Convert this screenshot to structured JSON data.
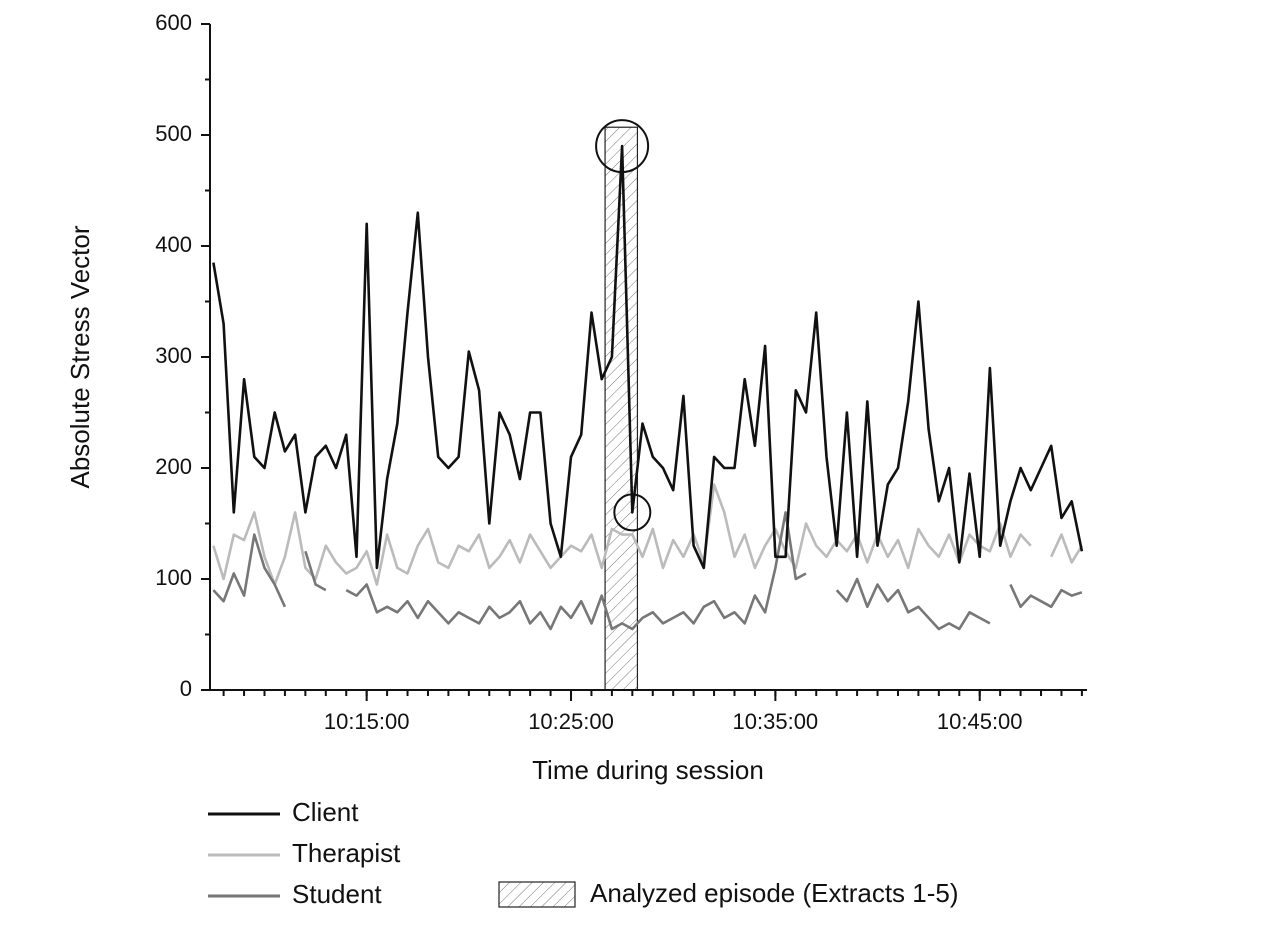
{
  "chart_data": {
    "type": "line",
    "x_label": "Time during session",
    "y_label": "Absolute Stress Vector",
    "xlim": [
      "10:07:20",
      "10:50:15"
    ],
    "xticks": [
      "10:15:00",
      "10:25:00",
      "10:35:00",
      "10:45:00"
    ],
    "ylim": [
      0,
      600
    ],
    "yticks": [
      0,
      100,
      200,
      300,
      400,
      500,
      600
    ],
    "x": [
      "10:07:30",
      "10:08:00",
      "10:08:30",
      "10:09:00",
      "10:09:30",
      "10:10:00",
      "10:10:30",
      "10:11:00",
      "10:11:30",
      "10:12:00",
      "10:12:30",
      "10:13:00",
      "10:13:30",
      "10:14:00",
      "10:14:30",
      "10:15:00",
      "10:15:30",
      "10:16:00",
      "10:16:30",
      "10:17:00",
      "10:17:30",
      "10:18:00",
      "10:18:30",
      "10:19:00",
      "10:19:30",
      "10:20:00",
      "10:20:30",
      "10:21:00",
      "10:21:30",
      "10:22:00",
      "10:22:30",
      "10:23:00",
      "10:23:30",
      "10:24:00",
      "10:24:30",
      "10:25:00",
      "10:25:30",
      "10:26:00",
      "10:26:30",
      "10:27:00",
      "10:27:30",
      "10:28:00",
      "10:28:30",
      "10:29:00",
      "10:29:30",
      "10:30:00",
      "10:30:30",
      "10:31:00",
      "10:31:30",
      "10:32:00",
      "10:32:30",
      "10:33:00",
      "10:33:30",
      "10:34:00",
      "10:34:30",
      "10:35:00",
      "10:35:30",
      "10:36:00",
      "10:36:30",
      "10:37:00",
      "10:37:30",
      "10:38:00",
      "10:38:30",
      "10:39:00",
      "10:39:30",
      "10:40:00",
      "10:40:30",
      "10:41:00",
      "10:41:30",
      "10:42:00",
      "10:42:30",
      "10:43:00",
      "10:43:30",
      "10:44:00",
      "10:44:30",
      "10:45:00",
      "10:45:30",
      "10:46:00",
      "10:46:30",
      "10:47:00",
      "10:47:30",
      "10:48:00",
      "10:48:30",
      "10:49:00",
      "10:49:30",
      "10:50:00"
    ],
    "series": [
      {
        "name": "Client",
        "color": "#111111",
        "values": [
          385,
          330,
          160,
          280,
          210,
          200,
          250,
          215,
          230,
          160,
          210,
          220,
          200,
          230,
          120,
          420,
          110,
          190,
          240,
          340,
          430,
          300,
          210,
          200,
          210,
          305,
          270,
          150,
          250,
          230,
          190,
          250,
          250,
          150,
          120,
          210,
          230,
          340,
          280,
          300,
          490,
          160,
          240,
          210,
          200,
          180,
          265,
          130,
          110,
          210,
          200,
          200,
          280,
          220,
          310,
          120,
          120,
          270,
          250,
          340,
          210,
          130,
          250,
          120,
          260,
          130,
          185,
          200,
          260,
          350,
          235,
          170,
          200,
          115,
          195,
          120,
          290,
          130,
          170,
          200,
          180,
          200,
          220,
          155,
          170,
          125
        ]
      },
      {
        "name": "Therapist",
        "color": "#bbbbbb",
        "values": [
          130,
          100,
          140,
          135,
          160,
          120,
          95,
          120,
          160,
          110,
          100,
          130,
          115,
          105,
          110,
          125,
          95,
          140,
          110,
          105,
          130,
          145,
          115,
          110,
          130,
          125,
          140,
          110,
          120,
          135,
          115,
          140,
          125,
          110,
          120,
          130,
          125,
          140,
          110,
          145,
          140,
          140,
          120,
          145,
          110,
          135,
          120,
          140,
          115,
          185,
          160,
          120,
          140,
          110,
          130,
          145,
          125,
          110,
          150,
          130,
          120,
          135,
          125,
          140,
          115,
          140,
          120,
          135,
          110,
          145,
          130,
          120,
          140,
          115,
          140,
          130,
          125,
          150,
          120,
          140,
          130,
          null,
          120,
          140,
          115,
          130
        ]
      },
      {
        "name": "Student",
        "color": "#777777",
        "values": [
          90,
          80,
          105,
          85,
          140,
          110,
          95,
          75,
          null,
          125,
          95,
          90,
          null,
          90,
          85,
          95,
          70,
          75,
          70,
          80,
          65,
          80,
          70,
          60,
          70,
          65,
          60,
          75,
          65,
          70,
          80,
          60,
          70,
          55,
          75,
          65,
          80,
          60,
          85,
          55,
          60,
          55,
          65,
          70,
          60,
          65,
          70,
          60,
          75,
          80,
          65,
          70,
          60,
          85,
          70,
          110,
          160,
          100,
          105,
          null,
          null,
          90,
          80,
          100,
          75,
          95,
          80,
          90,
          70,
          75,
          65,
          55,
          60,
          55,
          70,
          65,
          60,
          null,
          95,
          75,
          85,
          80,
          75,
          90,
          85,
          88
        ]
      }
    ],
    "episode": {
      "label": "Analyzed episode (Extracts 1-5)",
      "start": "10:26:40",
      "end": "10:28:15",
      "top": 507
    }
  }
}
